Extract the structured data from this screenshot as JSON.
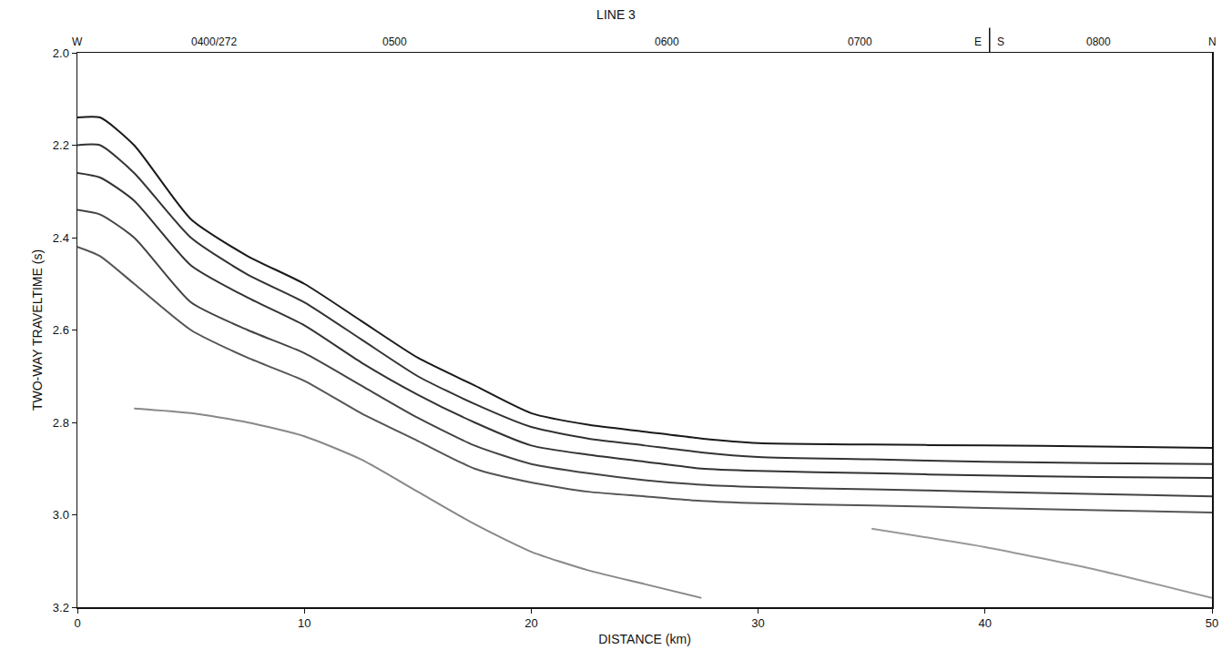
{
  "chart_data": {
    "type": "line",
    "title": "LINE 3",
    "x_label": "DISTANCE (km)",
    "y_label": "TWO-WAY TRAVELTIME (s)",
    "x": [
      0,
      1,
      2.5,
      5,
      7.5,
      10,
      12.5,
      15,
      17.5,
      20,
      22.5,
      25,
      27.5,
      30,
      35,
      40,
      45,
      50
    ],
    "series": [
      {
        "color": "#1a1a1a",
        "values": [
          2.14,
          2.14,
          2.2,
          2.36,
          2.44,
          2.5,
          2.58,
          2.66,
          2.72,
          2.78,
          2.805,
          2.82,
          2.835,
          2.845,
          2.848,
          2.85,
          2.852,
          2.855
        ]
      },
      {
        "color": "#333333",
        "values": [
          2.2,
          2.2,
          2.26,
          2.4,
          2.48,
          2.54,
          2.62,
          2.7,
          2.76,
          2.81,
          2.835,
          2.85,
          2.865,
          2.875,
          2.88,
          2.885,
          2.888,
          2.89
        ]
      },
      {
        "color": "#333333",
        "values": [
          2.26,
          2.27,
          2.32,
          2.46,
          2.53,
          2.59,
          2.67,
          2.74,
          2.8,
          2.85,
          2.87,
          2.885,
          2.9,
          2.905,
          2.91,
          2.915,
          2.918,
          2.92
        ]
      },
      {
        "color": "#444444",
        "values": [
          2.34,
          2.35,
          2.4,
          2.54,
          2.6,
          2.65,
          2.72,
          2.79,
          2.85,
          2.89,
          2.91,
          2.925,
          2.935,
          2.94,
          2.945,
          2.95,
          2.955,
          2.96
        ]
      },
      {
        "color": "#555555",
        "values": [
          2.42,
          2.44,
          2.5,
          2.6,
          2.66,
          2.71,
          2.78,
          2.84,
          2.9,
          2.93,
          2.95,
          2.96,
          2.97,
          2.975,
          2.98,
          2.985,
          2.99,
          2.995
        ]
      },
      {
        "color": "#888888",
        "values": [
          null,
          null,
          2.77,
          2.78,
          2.8,
          2.83,
          2.88,
          2.95,
          3.02,
          3.08,
          3.12,
          3.15,
          3.18,
          null,
          null,
          null,
          null,
          null
        ]
      },
      {
        "color": "#999999",
        "values": [
          null,
          null,
          null,
          null,
          null,
          null,
          null,
          null,
          null,
          null,
          null,
          null,
          null,
          null,
          3.03,
          3.07,
          3.12,
          3.18
        ]
      }
    ],
    "annotations": [
      {
        "x": 0,
        "text": "W"
      },
      {
        "x": 6,
        "text": "0400/272"
      },
      {
        "x": 14,
        "text": "0500"
      },
      {
        "x": 26,
        "text": "0600"
      },
      {
        "x": 34.5,
        "text": "0700"
      },
      {
        "x": 39.7,
        "text": "E"
      },
      {
        "x": 40.7,
        "text": "S"
      },
      {
        "x": 45,
        "text": "0800"
      },
      {
        "x": 50,
        "text": "N"
      }
    ],
    "xlim": [
      0,
      50
    ],
    "xticks": [
      0,
      10,
      20,
      30,
      40,
      50
    ],
    "ylim": [
      3.2,
      2.0
    ],
    "yticks": [
      {
        "value": 2.0,
        "label": "2.0"
      },
      2.2,
      2.4,
      2.6,
      2.8,
      {
        "value": 3.0,
        "label": "3.0"
      },
      3.2
    ],
    "grid": false
  }
}
